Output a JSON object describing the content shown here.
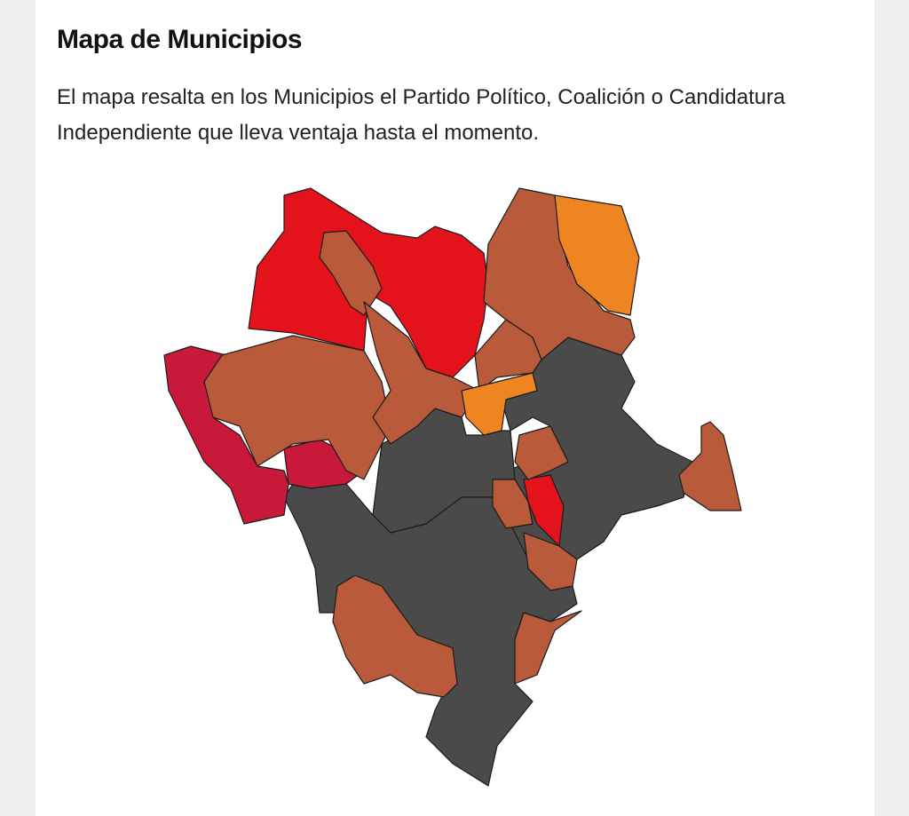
{
  "header": {
    "title": "Mapa de Municipios"
  },
  "description": "El mapa resalta en los Municipios el Partido Político, Coalición o Candidatura Independiente que lleva ventaja hasta el momento."
}
